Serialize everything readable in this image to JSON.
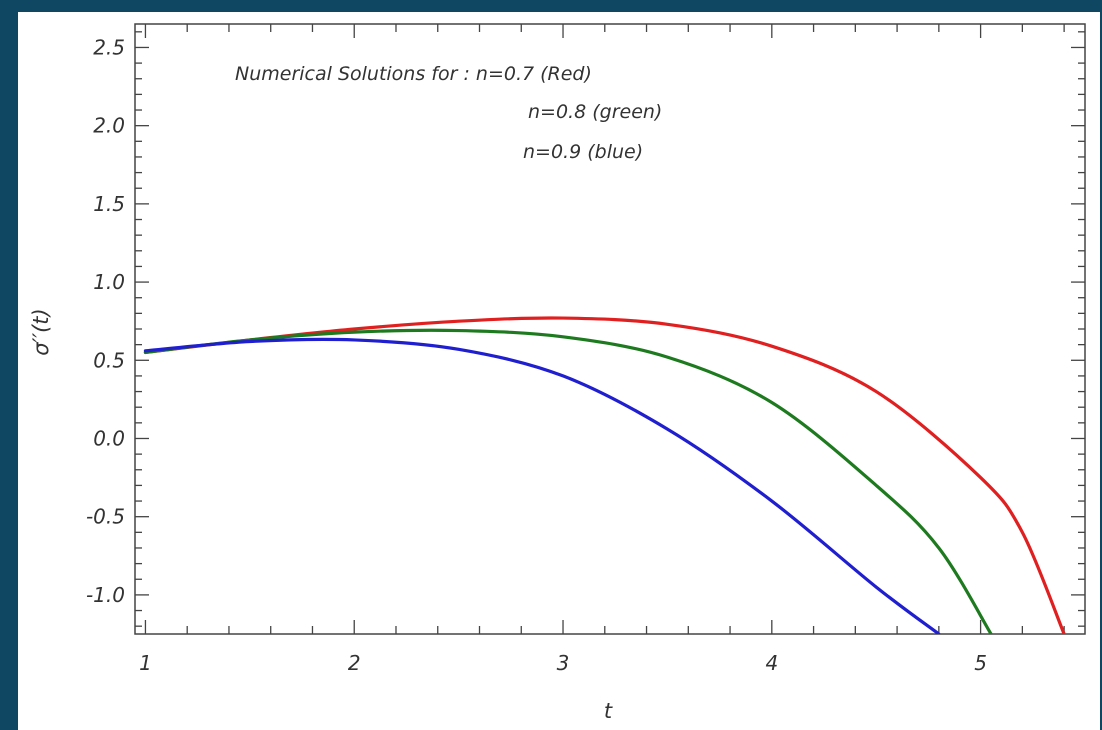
{
  "chart_data": {
    "type": "line",
    "xlabel": "t",
    "ylabel": "σ′′(t)",
    "xlim": [
      0.95,
      5.5
    ],
    "ylim": [
      -1.25,
      2.65
    ],
    "xticks": [
      1,
      2,
      3,
      4,
      5
    ],
    "xtick_labels": [
      "1",
      "2",
      "3",
      "4",
      "5"
    ],
    "yticks": [
      -1.0,
      -0.5,
      0.0,
      0.5,
      1.0,
      1.5,
      2.0,
      2.5
    ],
    "ytick_labels": [
      "-1.0",
      "-0.5",
      "0.0",
      "0.5",
      "1.0",
      "1.5",
      "2.0",
      "2.5"
    ],
    "grid": false,
    "frame": true,
    "annotations": [
      "Numerical Solutions for : n=0.7 (Red)",
      "n=0.8 (green)",
      "n=0.9 (blue)"
    ],
    "series": [
      {
        "color": "#e02020",
        "x": [
          1.0,
          1.5,
          2.0,
          2.5,
          3.0,
          3.5,
          4.0,
          4.5,
          5.0,
          5.2,
          5.4
        ],
        "y": [
          0.55,
          0.63,
          0.7,
          0.75,
          0.77,
          0.73,
          0.59,
          0.3,
          -0.25,
          -0.6,
          -1.25
        ]
      },
      {
        "color": "#1e7a1e",
        "x": [
          1.0,
          1.5,
          2.0,
          2.5,
          3.0,
          3.5,
          4.0,
          4.5,
          4.8,
          5.05
        ],
        "y": [
          0.55,
          0.63,
          0.68,
          0.69,
          0.65,
          0.52,
          0.23,
          -0.3,
          -0.7,
          -1.25
        ]
      },
      {
        "color": "#1f1fd0",
        "x": [
          1.0,
          1.5,
          2.0,
          2.5,
          3.0,
          3.5,
          4.0,
          4.5,
          4.8
        ],
        "y": [
          0.56,
          0.62,
          0.63,
          0.57,
          0.4,
          0.06,
          -0.4,
          -0.95,
          -1.25
        ]
      }
    ]
  }
}
